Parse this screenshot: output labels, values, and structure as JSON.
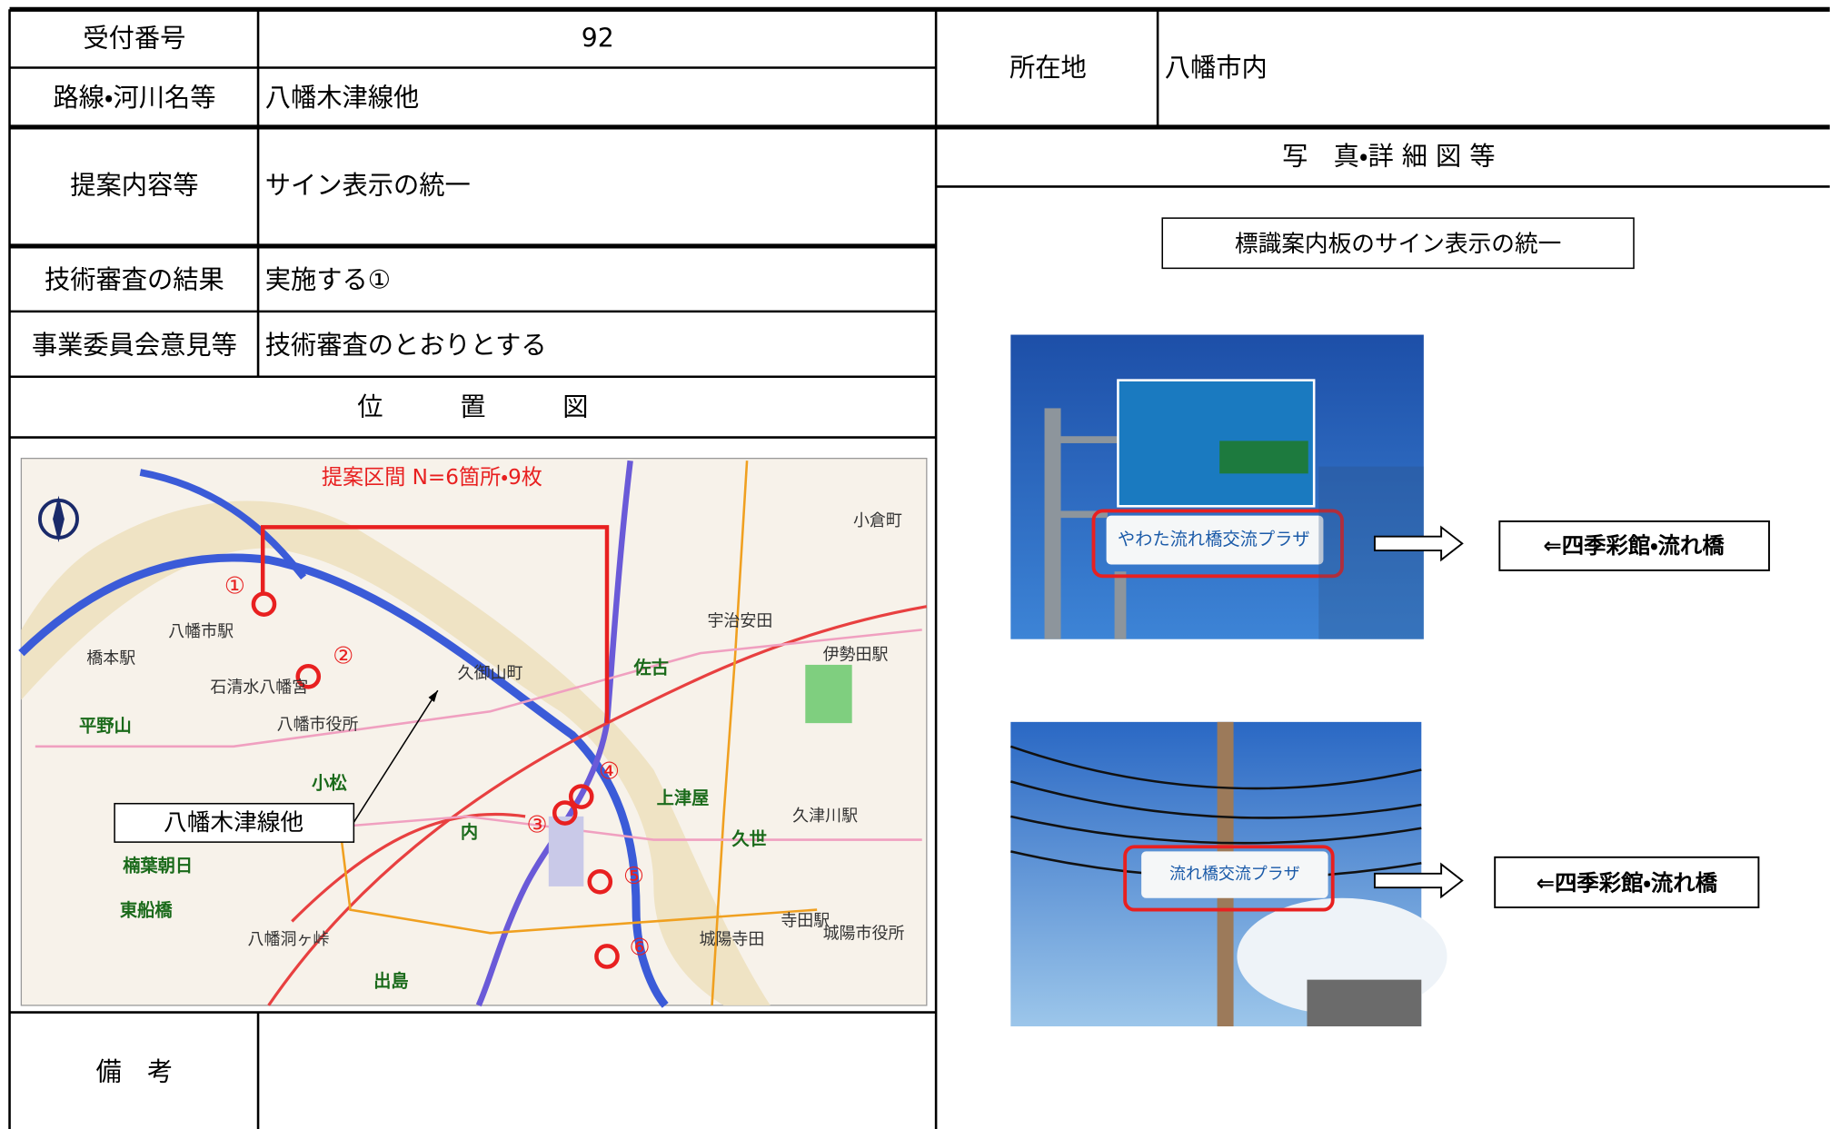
{
  "form": {
    "reception_no_label": "受付番号",
    "reception_no": "92",
    "route_label": "路線・河川名等",
    "route": "八幡木津線他",
    "location_label": "所在地",
    "location": "八幡市内",
    "proposal_label": "提案内容等",
    "proposal": "サイン表示の統一",
    "review_label": "技術審査の結果",
    "review": "実施する①",
    "committee_label": "事業委員会意見等",
    "committee": "技術審査のとおりとする",
    "map_header": "位　　　置　　　図",
    "remarks_label": "備　考",
    "photos_header": "写　真・詳 細 図 等"
  },
  "map": {
    "annotation": "提案区間 N=6箇所・9枚",
    "callout": "八幡木津線他",
    "points": [
      "①",
      "②",
      "③",
      "④",
      "⑤",
      "⑥"
    ],
    "places": [
      "八幡市駅",
      "橋本駅",
      "石清水八幡宮",
      "八幡市役所",
      "平野山",
      "小松",
      "内",
      "久御山町",
      "佐古",
      "上津屋",
      "久世",
      "城陽市役所",
      "東船橋",
      "楠葉朝日",
      "出島",
      "宇治安田",
      "伊勢田駅",
      "小倉町",
      "寺田駅",
      "久津川駅",
      "八幡洞ヶ峠",
      "城陽寺田"
    ]
  },
  "photos": {
    "caption": "標識案内板のサイン表示の統一",
    "items": [
      {
        "sign": "やわた流れ橋交流プラザ",
        "destination": "⇐四季彩館・流れ橋"
      },
      {
        "sign": "流れ橋交流プラザ",
        "destination": "⇐四季彩館・流れ橋"
      }
    ]
  }
}
